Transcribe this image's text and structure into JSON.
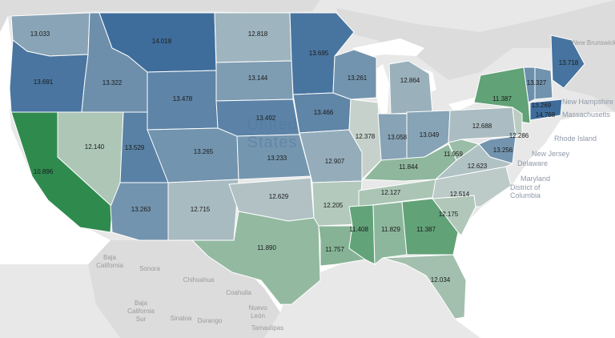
{
  "map": {
    "country_label_line1": "United",
    "country_label_line2": "States",
    "colors": {
      "background": "#e8e8e8",
      "water": "#ffffff",
      "land_other": "#dcdcdc",
      "low": "#2f8a4e",
      "mid": "#c7d2cc",
      "high": "#3e6d9c"
    },
    "states": [
      {
        "id": "WA",
        "value": "13.033"
      },
      {
        "id": "OR",
        "value": "13.691"
      },
      {
        "id": "CA",
        "value": "10.896"
      },
      {
        "id": "NV",
        "value": "12.140"
      },
      {
        "id": "ID",
        "value": "13.322"
      },
      {
        "id": "MT",
        "value": "14.018"
      },
      {
        "id": "WY",
        "value": "13.478"
      },
      {
        "id": "UT",
        "value": "13.529"
      },
      {
        "id": "AZ",
        "value": "13.263"
      },
      {
        "id": "CO",
        "value": "13.265"
      },
      {
        "id": "NM",
        "value": "12.715"
      },
      {
        "id": "ND",
        "value": "12.818"
      },
      {
        "id": "SD",
        "value": "13.144"
      },
      {
        "id": "NE",
        "value": "13.492"
      },
      {
        "id": "KS",
        "value": "13.233"
      },
      {
        "id": "OK",
        "value": "12.629"
      },
      {
        "id": "TX",
        "value": "11.890"
      },
      {
        "id": "MN",
        "value": "13.695"
      },
      {
        "id": "IA",
        "value": "13.466"
      },
      {
        "id": "MO",
        "value": "12.907"
      },
      {
        "id": "AR",
        "value": "12.205"
      },
      {
        "id": "LA",
        "value": "11.757"
      },
      {
        "id": "WI",
        "value": "13.261"
      },
      {
        "id": "IL",
        "value": "12.378"
      },
      {
        "id": "MI",
        "value": "12.864"
      },
      {
        "id": "IN",
        "value": "13.058"
      },
      {
        "id": "OH",
        "value": "13.049"
      },
      {
        "id": "KY",
        "value": "11.844"
      },
      {
        "id": "TN",
        "value": "12.127"
      },
      {
        "id": "MS",
        "value": "11.408"
      },
      {
        "id": "AL",
        "value": "11.829"
      },
      {
        "id": "GA",
        "value": "11.387"
      },
      {
        "id": "FL",
        "value": "12.034"
      },
      {
        "id": "SC",
        "value": "12.175"
      },
      {
        "id": "NC",
        "value": "12.514"
      },
      {
        "id": "VA",
        "value": "12.623"
      },
      {
        "id": "WV",
        "value": "11.959"
      },
      {
        "id": "PA",
        "value": "12.688"
      },
      {
        "id": "NY",
        "value": "11.387"
      },
      {
        "id": "NJ",
        "value": "12.286"
      },
      {
        "id": "MD",
        "value": "13.256"
      },
      {
        "id": "VT",
        "value": "13.327"
      },
      {
        "id": "ME",
        "value": "13.718"
      },
      {
        "id": "NH",
        "value": "13.269"
      },
      {
        "id": "MA",
        "value": "14.768"
      }
    ],
    "geo_labels": {
      "new_brunswick": "New Brunswick",
      "new_hampshire": "New Hampshire",
      "massachusetts": "Massachusetts",
      "rhode_island": "Rhode Island",
      "new_jersey": "New Jersey",
      "delaware": "Delaware",
      "maryland": "Maryland",
      "district_line1": "District of",
      "district_line2": "Columbia",
      "baja_california_line1": "Baja",
      "baja_california_line2": "California",
      "sonora": "Sonora",
      "chihuahua": "Chihuahua",
      "coahuila": "Coahuila",
      "baja_sur_line1": "Baja",
      "baja_sur_line2": "California",
      "baja_sur_line3": "Sur",
      "sinaloa": "Sinaloa",
      "durango": "Durango",
      "nuevo_leon_line1": "Nuevo",
      "nuevo_leon_line2": "León",
      "tamaulipas": "Tamaulipas"
    }
  }
}
